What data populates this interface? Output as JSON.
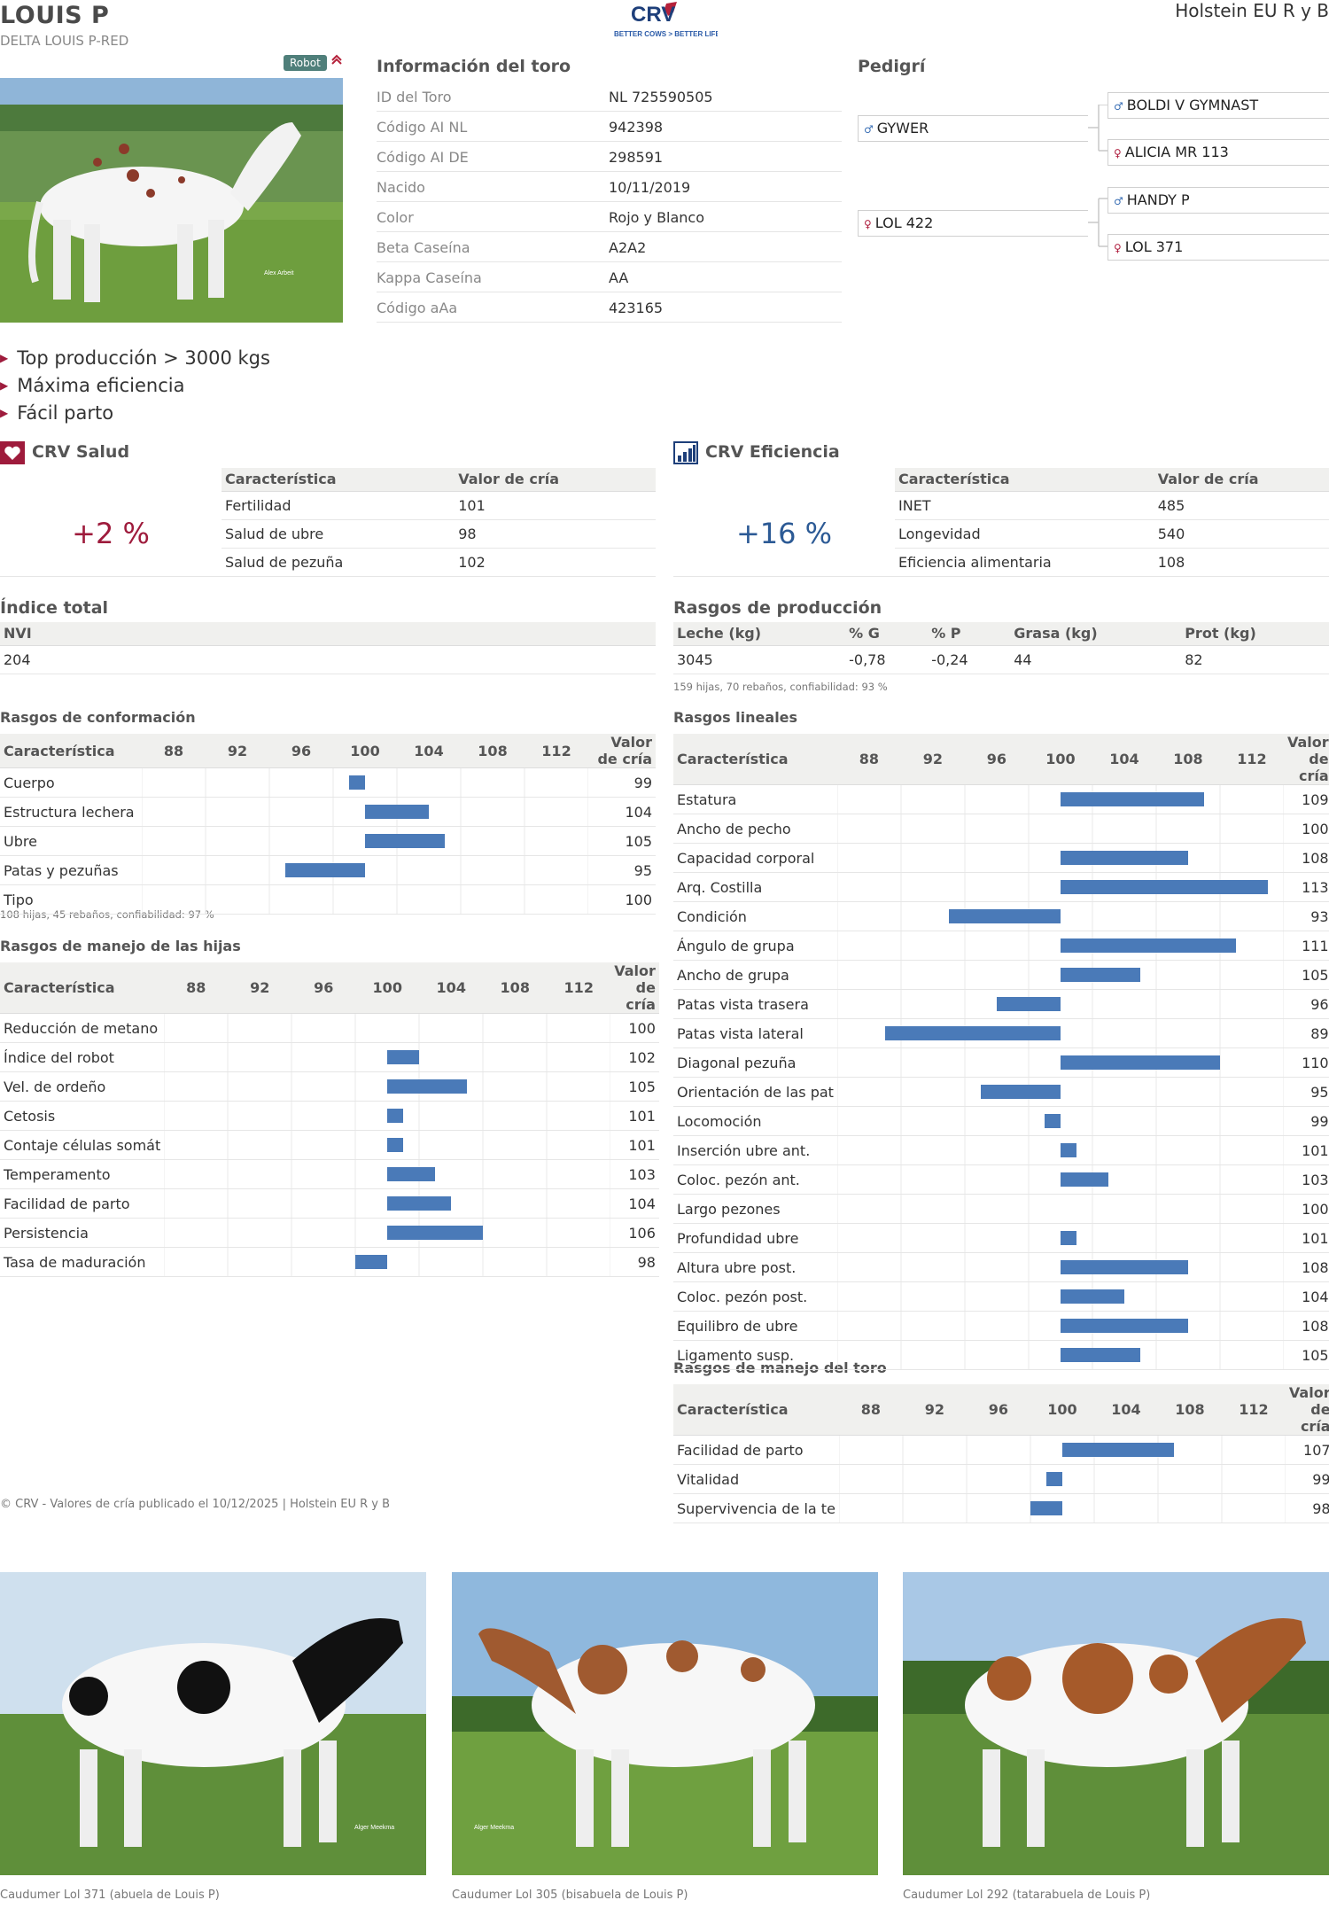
{
  "header": {
    "name": "LOUIS P",
    "full_name": "DELTA LOUIS P-RED",
    "breed": "Holstein EU R y B",
    "logo_text": "CRV",
    "logo_tagline": "BETTER COWS > BETTER LIFE"
  },
  "badge": "Robot",
  "photo_credit": "Alex Arbeit",
  "info": {
    "title": "Información del toro",
    "rows": [
      {
        "label": "ID del Toro",
        "value": "NL 725590505"
      },
      {
        "label": "Código AI NL",
        "value": "942398"
      },
      {
        "label": "Código AI DE",
        "value": "298591"
      },
      {
        "label": "Nacido",
        "value": "10/11/2019"
      },
      {
        "label": "Color",
        "value": "Rojo y Blanco"
      },
      {
        "label": "Beta Caseína",
        "value": "A2A2"
      },
      {
        "label": "Kappa Caseína",
        "value": "AA"
      },
      {
        "label": "Código aAa",
        "value": "423165"
      }
    ]
  },
  "pedigree": {
    "title": "Pedigrí",
    "sire": "GYWER",
    "dam": "LOL 422",
    "ss": "BOLDI V GYMNAST",
    "sd": "ALICIA MR 113",
    "ds": "HANDY P",
    "dd": "LOL 371"
  },
  "highlights": [
    "Top producción > 3000 kgs",
    "Máxima eficiencia",
    "Fácil parto"
  ],
  "health": {
    "title": "CRV Salud",
    "value": "+2 %",
    "col1": "Característica",
    "col2": "Valor de cría",
    "rows": [
      {
        "label": "Fertilidad",
        "value": "101"
      },
      {
        "label": "Salud de ubre",
        "value": "98"
      },
      {
        "label": "Salud de pezuña",
        "value": "102"
      }
    ]
  },
  "efficiency": {
    "title": "CRV Eficiencia",
    "value": "+16 %",
    "col1": "Característica",
    "col2": "Valor de cría",
    "rows": [
      {
        "label": "INET",
        "value": "485"
      },
      {
        "label": "Longevidad",
        "value": "540"
      },
      {
        "label": "Eficiencia alimentaria",
        "value": "108"
      }
    ]
  },
  "total": {
    "title": "Índice total",
    "header": "NVI",
    "value": "204"
  },
  "production": {
    "title": "Rasgos de producción",
    "headers": [
      "Leche (kg)",
      "% G",
      "% P",
      "Grasa (kg)",
      "Prot (kg)"
    ],
    "values": [
      "3045",
      "-0,78",
      "-0,24",
      "44",
      "82"
    ],
    "note": "159 hijas, 70 rebaños, confiabilidad: 93 %"
  },
  "scale": {
    "col1": "Característica",
    "ticks": [
      "88",
      "92",
      "96",
      "100",
      "104",
      "108",
      "112"
    ],
    "col_value": "Valor de cría"
  },
  "conformation": {
    "title": "Rasgos de conformación",
    "note": "108 hijas, 45 rebaños, confiabilidad: 97 %",
    "rows": [
      {
        "label": "Cuerpo",
        "value": "99"
      },
      {
        "label": "Estructura lechera",
        "value": "104"
      },
      {
        "label": "Ubre",
        "value": "105"
      },
      {
        "label": "Patas y pezuñas",
        "value": "95"
      },
      {
        "label": "Tipo",
        "value": "100"
      }
    ]
  },
  "daughters": {
    "title": "Rasgos de manejo de las hijas",
    "rows": [
      {
        "label": "Reducción de metano",
        "value": "100"
      },
      {
        "label": "Índice del robot",
        "value": "102"
      },
      {
        "label": "Vel. de ordeño",
        "value": "105"
      },
      {
        "label": "Cetosis",
        "value": "101"
      },
      {
        "label": "Contaje células somát",
        "value": "101"
      },
      {
        "label": "Temperamento",
        "value": "103"
      },
      {
        "label": "Facilidad de parto",
        "value": "104"
      },
      {
        "label": "Persistencia",
        "value": "106"
      },
      {
        "label": "Tasa de maduración",
        "value": "98"
      }
    ]
  },
  "linear": {
    "title": "Rasgos lineales",
    "rows": [
      {
        "label": "Estatura",
        "value": "109"
      },
      {
        "label": "Ancho de pecho",
        "value": "100"
      },
      {
        "label": "Capacidad corporal",
        "value": "108"
      },
      {
        "label": "Arq. Costilla",
        "value": "113"
      },
      {
        "label": "Condición",
        "value": "93"
      },
      {
        "label": "Ángulo de grupa",
        "value": "111"
      },
      {
        "label": "Ancho de grupa",
        "value": "105"
      },
      {
        "label": "Patas vista trasera",
        "value": "96"
      },
      {
        "label": "Patas vista lateral",
        "value": "89"
      },
      {
        "label": "Diagonal pezuña",
        "value": "110"
      },
      {
        "label": "Orientación de las pat",
        "value": "95"
      },
      {
        "label": "Locomoción",
        "value": "99"
      },
      {
        "label": "Inserción ubre ant.",
        "value": "101"
      },
      {
        "label": "Coloc. pezón ant.",
        "value": "103"
      },
      {
        "label": "Largo pezones",
        "value": "100"
      },
      {
        "label": "Profundidad ubre",
        "value": "101"
      },
      {
        "label": "Altura ubre post.",
        "value": "108"
      },
      {
        "label": "Coloc. pezón post.",
        "value": "104"
      },
      {
        "label": "Equilibro de ubre",
        "value": "108"
      },
      {
        "label": "Ligamento susp.",
        "value": "105"
      }
    ]
  },
  "bull": {
    "title": "Rasgos de manejo del toro",
    "rows": [
      {
        "label": "Facilidad de parto",
        "value": "107"
      },
      {
        "label": "Vitalidad",
        "value": "99"
      },
      {
        "label": "Supervivencia de la te",
        "value": "98"
      }
    ]
  },
  "footer": "© CRV - Valores de cría publicado el 10/12/2025 | Holstein EU R y B",
  "photo_credits": [
    "Alger Meekma",
    "Alger Meekma"
  ],
  "captions": [
    "Caudumer Lol 371 (abuela de Louis P)",
    "Caudumer Lol 305 (bisabuela de Louis P)",
    "Caudumer Lol 292 (tatarabuela de Louis P)"
  ],
  "colors": {
    "bar": "#4a7ab8",
    "accent": "#9e1b3c",
    "navy": "#1e3f7a"
  }
}
